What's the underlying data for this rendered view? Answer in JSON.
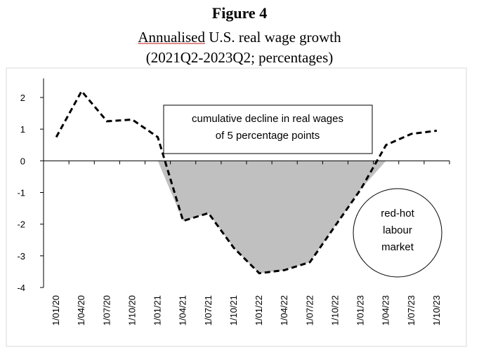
{
  "figure": {
    "label": "Figure 4",
    "subtitle_word": "Annualised",
    "subtitle_rest": " U.S. real wage growth",
    "subtitle_line2": "(2021Q2-2023Q2; percentages)"
  },
  "chart_data": {
    "type": "line",
    "categories": [
      "1/01/20",
      "1/04/20",
      "1/07/20",
      "1/10/20",
      "1/01/21",
      "1/04/21",
      "1/07/21",
      "1/10/21",
      "1/01/22",
      "1/04/22",
      "1/07/22",
      "1/10/22",
      "1/01/23",
      "1/04/23",
      "1/07/23",
      "1/10/23"
    ],
    "series": [
      {
        "values": [
          0.75,
          2.2,
          1.25,
          1.3,
          0.75,
          -1.9,
          -1.65,
          -2.75,
          -3.55,
          -3.45,
          -3.2,
          -2.05,
          -0.9,
          0.5,
          0.85,
          0.95
        ]
      }
    ],
    "line_style": "dashed",
    "shaded_area": {
      "from_category": "1/01/21",
      "to_category": "1/04/23",
      "fill": "#c0c0c0"
    },
    "ylim": [
      -4,
      2.6
    ],
    "yticks": [
      2,
      1,
      0,
      -1,
      -2,
      -3,
      -4
    ],
    "xlabel": "",
    "ylabel": "",
    "grid": false,
    "annotations": {
      "box_line1": "cumulative decline in real wages",
      "box_line2": "of 5 percentage points",
      "circle_line1": "red-hot",
      "circle_line2": "labour",
      "circle_line3": "market"
    }
  }
}
